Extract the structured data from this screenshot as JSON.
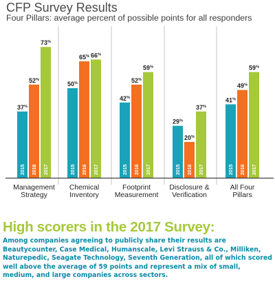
{
  "chart_data": {
    "type": "bar",
    "title": "CFP Survey Results",
    "subtitle": "Four Pillars: average percent of possible points for all responders",
    "categories": [
      [
        "Management",
        "Strategy"
      ],
      [
        "Chemical",
        "Inventory"
      ],
      [
        "Footprint",
        "Measurement"
      ],
      [
        "Disclosure &",
        "Verification"
      ],
      [
        "All Four",
        "Pillars"
      ]
    ],
    "series": [
      {
        "name": "2015",
        "color": "#1aa3b8",
        "values": [
          37,
          50,
          42,
          29,
          41
        ]
      },
      {
        "name": "2016",
        "color": "#f36f21",
        "values": [
          52,
          65,
          52,
          20,
          49
        ]
      },
      {
        "name": "2017",
        "color": "#a6c83b",
        "values": [
          73,
          66,
          59,
          37,
          59
        ]
      }
    ],
    "value_suffix": "%",
    "ylim": [
      0,
      100
    ],
    "grid": false,
    "legend": "none"
  },
  "headline": "High scorers in the 2017 Survey:",
  "body": "Among companies agreeing to publicly share their results are Beautycounter, Case Medical, Humanscale, Levi Strauss & Co., Milliken, Naturepedic, Seagate Technology, Seventh Generation, all of which scored well above the average of 59 points and represent a mix of small, medium, and large companies across sectors."
}
